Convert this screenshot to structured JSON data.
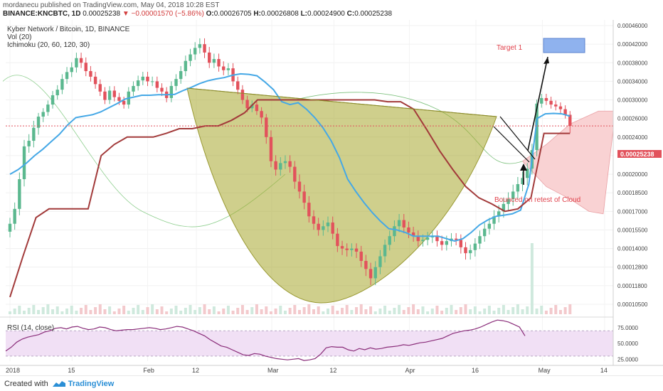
{
  "header": {
    "publisher_line": "mordanecu published on TradingView.com, May 04, 2018 10:28 EST",
    "symbol": "BINANCE:KNCBTC, 1D",
    "last": "0.00025238",
    "change": "−0.00001570 (−5.86%)",
    "o_label": "O:",
    "o": "0.00026705",
    "h_label": "H:",
    "h": "0.00026808",
    "l_label": "L:",
    "l": "0.00024900",
    "c_label": "C:",
    "c": "0.00025238"
  },
  "legend": {
    "title": "Kyber Network / Bitcoin, 1D, BINANCE",
    "vol": "Vol (20)",
    "ichimoku": "Ichimoku (20, 60, 120, 30)",
    "rsi": "RSI (14, close)"
  },
  "annotations": {
    "target": "Target 1",
    "bounce": "Bounced on retest of Cloud"
  },
  "price_tag": "0.00025238",
  "footer": {
    "created_with": "Created with",
    "brand": "TradingView"
  },
  "colors": {
    "up": "#5bb88f",
    "down": "#e2525c",
    "tenkan": "#45a8e6",
    "kijun": "#a23a3a",
    "cloud": "#f9d2d3",
    "cup": "#a8a82e",
    "rsi_line": "#8a2d7a",
    "rsi_band": "#f1e0f5",
    "target_box": "#8fb2ee"
  },
  "chart_data": [
    {
      "type": "candlestick",
      "title": "Kyber Network / Bitcoin, 1D, BINANCE",
      "y_ticks": [
        "0.00046000",
        "0.00042000",
        "0.00038000",
        "0.00034000",
        "0.00030000",
        "0.00026000",
        "0.00024000",
        "0.00022000",
        "0.00020000",
        "0.00018500",
        "0.00017000",
        "0.00015500",
        "0.00014000",
        "0.00012800",
        "0.00011800",
        "0.00010500"
      ],
      "x_ticks": [
        "2018",
        "15",
        "Feb",
        "12",
        "Mar",
        "12",
        "Apr",
        "16",
        "May",
        "14"
      ],
      "close": [
        0.00016,
        0.000172,
        0.000196,
        0.00023,
        0.000236,
        0.00025,
        0.000264,
        0.000274,
        0.00029,
        0.00031,
        0.000322,
        0.000345,
        0.00036,
        0.00037,
        0.00039,
        0.00038,
        0.000362,
        0.00035,
        0.000334,
        0.000318,
        0.0003,
        0.00032,
        0.000306,
        0.000298,
        0.00029,
        0.000318,
        0.00033,
        0.000342,
        0.00035,
        0.00034,
        0.00034,
        0.000326,
        0.000318,
        0.000304,
        0.00033,
        0.000345,
        0.000362,
        0.000384,
        0.000398,
        0.000412,
        0.00042,
        0.000402,
        0.00038,
        0.000388,
        0.000372,
        0.000364,
        0.000368,
        0.00034,
        0.000322,
        0.0003,
        0.000282,
        0.00029,
        0.000276,
        0.000262,
        0.00024,
        0.000214,
        0.000205,
        0.000212,
        0.000214,
        0.000208,
        0.000194,
        0.000186,
        0.000177,
        0.000166,
        0.00016,
        0.000155,
        0.000158,
        0.000161,
        0.000152,
        0.000142,
        0.00014,
        0.000139,
        0.00014,
        0.000138,
        0.000132,
        0.000127,
        0.000122,
        0.000128,
        0.000135,
        0.000143,
        0.00015,
        0.000158,
        0.000163,
        0.000157,
        0.000153,
        0.00015,
        0.000146,
        0.000147,
        0.000149,
        0.00015,
        0.000146,
        0.000143,
        0.000146,
        0.000148,
        0.000147,
        0.000141,
        0.000137,
        0.000139,
        0.000144,
        0.00015,
        0.000156,
        0.00016,
        0.000166,
        0.00017,
        0.000176,
        0.00018,
        0.000186,
        0.000192,
        0.000197,
        0.000206,
        0.000226,
        0.000292,
        0.000304,
        0.000298,
        0.00029,
        0.000286,
        0.00028,
        0.000268,
        0.000252
      ],
      "tenkan_sen": [
        0.0002,
        0.000205,
        0.000212,
        0.00022,
        0.000227,
        0.000235,
        0.000243,
        0.000253,
        0.000262,
        0.000265,
        0.000268,
        0.000274,
        0.000283,
        0.000292,
        0.000302,
        0.000306,
        0.00031,
        0.00031,
        0.000311,
        0.000311,
        0.000312,
        0.00032,
        0.000327,
        0.000335,
        0.000341,
        0.000345,
        0.000348,
        0.000353,
        0.000356,
        0.000355,
        0.000352,
        0.000338,
        0.000322,
        0.000296,
        0.00029,
        0.000294,
        0.00028,
        0.000262,
        0.00025,
        0.000236,
        0.000218,
        0.000196,
        0.000186,
        0.000177,
        0.000169,
        0.000162,
        0.000156,
        0.000155,
        0.000153,
        0.00015,
        0.00015,
        0.00015,
        0.00015,
        0.000148,
        0.000146,
        0.000148,
        0.000153,
        0.000159,
        0.000163,
        0.000166,
        0.000167,
        0.000168,
        0.000171,
        0.000192,
        0.00026,
        0.00027,
        0.000271,
        0.00027,
        0.000265
      ],
      "kijun_sen": [
        0.00011,
        0.000135,
        0.000165,
        0.000172,
        0.000172,
        0.000172,
        0.000172,
        0.00022,
        0.000232,
        0.00024,
        0.00024,
        0.00024,
        0.000244,
        0.000249,
        0.000249,
        0.000252,
        0.000252,
        0.000258,
        0.000272,
        0.0003,
        0.0003,
        0.0003,
        0.0003,
        0.0003,
        0.0003,
        0.0003,
        0.0003,
        0.0003,
        0.0003,
        0.000296,
        0.000296,
        0.00028,
        0.000248,
        0.000225,
        0.000205,
        0.00019,
        0.000181,
        0.000176,
        0.00017,
        0.000172,
        0.000181,
        0.000244,
        0.000244,
        0.000244
      ],
      "price_line": 0.000252,
      "volume_spike_index": 110,
      "rsi_ticks": [
        "75.0000",
        "50.0000",
        "25.0000"
      ],
      "rsi": [
        38,
        44,
        52,
        57,
        60,
        62,
        64,
        68,
        70,
        74,
        75,
        73,
        76,
        77,
        74,
        72,
        73,
        76,
        75,
        72,
        70,
        71,
        72,
        72,
        73,
        74,
        75,
        74,
        72,
        73,
        75,
        77,
        76,
        73,
        70,
        66,
        62,
        56,
        51,
        46,
        44,
        40,
        36,
        32,
        31,
        34,
        33,
        30,
        28,
        26,
        25,
        24,
        25,
        26,
        23,
        24,
        26,
        33,
        43,
        45,
        44,
        44,
        40,
        38,
        42,
        40,
        43,
        41,
        42,
        44,
        45,
        46,
        48,
        47,
        49,
        51,
        52,
        54,
        56,
        58,
        62,
        66,
        68,
        70,
        71,
        73,
        76,
        80,
        84,
        87,
        86,
        84,
        80,
        76,
        62
      ]
    }
  ]
}
